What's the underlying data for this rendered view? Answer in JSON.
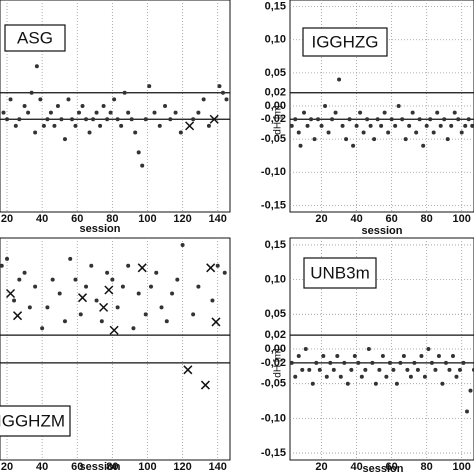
{
  "chart_data": [
    {
      "type": "scatter",
      "title": "ASG",
      "xlabel": "session",
      "xlim": [
        16,
        147
      ],
      "ylim": [
        -0.16,
        0.16
      ],
      "xticks": [
        20,
        40,
        60,
        80,
        100,
        120,
        140
      ],
      "hlines": [
        0.02,
        -0.02
      ],
      "grid": true,
      "series": [
        {
          "marker": "dot",
          "color": "#333333",
          "x": [
            18,
            20,
            22,
            25,
            27,
            30,
            32,
            34,
            36,
            37,
            39,
            41,
            43,
            45,
            47,
            49,
            51,
            53,
            55,
            57,
            59,
            61,
            63,
            65,
            67,
            69,
            71,
            73,
            75,
            77,
            79,
            81,
            83,
            85,
            87,
            89,
            91,
            93,
            95,
            97,
            99,
            101,
            104,
            107,
            110,
            113,
            116,
            119,
            126,
            129,
            132,
            135,
            141,
            143,
            145
          ],
          "values": [
            -0.01,
            -0.02,
            0.01,
            -0.03,
            -0.02,
            0.0,
            -0.01,
            0.02,
            -0.04,
            0.06,
            0.01,
            -0.03,
            -0.02,
            -0.01,
            -0.03,
            0.0,
            -0.02,
            -0.05,
            0.01,
            -0.02,
            -0.03,
            -0.01,
            0.0,
            -0.02,
            -0.04,
            -0.02,
            -0.01,
            -0.03,
            0.0,
            -0.02,
            -0.01,
            0.01,
            -0.02,
            -0.03,
            0.02,
            -0.01,
            -0.02,
            -0.04,
            -0.07,
            -0.09,
            -0.02,
            0.03,
            -0.01,
            -0.03,
            0.0,
            -0.02,
            -0.01,
            -0.04,
            -0.02,
            -0.01,
            0.01,
            -0.03,
            0.03,
            0.02,
            0.01
          ]
        },
        {
          "marker": "cross",
          "color": "#111111",
          "x": [
            124,
            138
          ],
          "values": [
            -0.03,
            -0.02
          ]
        }
      ]
    },
    {
      "type": "scatter",
      "title": "IGGHZG",
      "xlabel": "session",
      "ylabel": "dH [m]",
      "xlim": [
        2,
        107
      ],
      "ylim": [
        -0.16,
        0.16
      ],
      "xticks": [
        20,
        40,
        60,
        80,
        100
      ],
      "yticks": [
        {
          "value": 0.15,
          "label": "0,15"
        },
        {
          "value": 0.1,
          "label": "0,10"
        },
        {
          "value": 0.05,
          "label": "0,05"
        },
        {
          "value": 0.02,
          "label": "0,02"
        },
        {
          "value": 0,
          "label": "0,00"
        },
        {
          "value": -0.02,
          "label": "-0,02"
        },
        {
          "value": -0.05,
          "label": "-0,05"
        },
        {
          "value": -0.1,
          "label": "-0,10"
        },
        {
          "value": -0.15,
          "label": "-0,15"
        }
      ],
      "hlines": [
        0.02,
        -0.02
      ],
      "grid": true,
      "series": [
        {
          "marker": "dot",
          "color": "#333333",
          "x": [
            3,
            5,
            7,
            8,
            10,
            12,
            14,
            16,
            18,
            20,
            22,
            24,
            26,
            28,
            30,
            32,
            34,
            36,
            38,
            40,
            42,
            44,
            46,
            48,
            50,
            52,
            54,
            56,
            58,
            60,
            62,
            64,
            66,
            68,
            70,
            72,
            74,
            76,
            78,
            80,
            82,
            84,
            86,
            88,
            90,
            92,
            94,
            96,
            98,
            100,
            102,
            104,
            106
          ],
          "values": [
            -0.03,
            -0.02,
            -0.04,
            -0.06,
            -0.01,
            -0.03,
            -0.02,
            -0.05,
            -0.02,
            -0.03,
            0.0,
            -0.04,
            -0.02,
            -0.01,
            0.04,
            -0.03,
            -0.05,
            -0.02,
            -0.06,
            -0.03,
            -0.01,
            -0.04,
            -0.02,
            -0.03,
            -0.05,
            -0.02,
            -0.03,
            -0.01,
            -0.04,
            -0.02,
            -0.03,
            0.0,
            -0.02,
            -0.05,
            -0.03,
            -0.01,
            -0.04,
            -0.02,
            -0.06,
            -0.03,
            -0.02,
            -0.04,
            -0.01,
            -0.03,
            -0.02,
            -0.05,
            -0.03,
            -0.01,
            -0.02,
            -0.04,
            -0.03,
            -0.02,
            -0.03
          ]
        }
      ]
    },
    {
      "type": "scatter",
      "title": "IGGHZM",
      "xlabel": "session",
      "xlim": [
        16,
        147
      ],
      "ylim": [
        -0.16,
        0.16
      ],
      "xticks": [
        20,
        40,
        60,
        80,
        100,
        120,
        140
      ],
      "hlines": [
        0.02,
        -0.02
      ],
      "grid": true,
      "series": [
        {
          "marker": "dot",
          "color": "#333333",
          "x": [
            17,
            20,
            24,
            27,
            30,
            33,
            36,
            40,
            43,
            46,
            50,
            53,
            56,
            59,
            62,
            65,
            68,
            71,
            74,
            77,
            80,
            83,
            86,
            89,
            92,
            95,
            99,
            102,
            105,
            108,
            111,
            114,
            117,
            120,
            126,
            129,
            137,
            140,
            144
          ],
          "values": [
            0.12,
            0.13,
            0.07,
            0.1,
            0.11,
            0.06,
            0.09,
            0.03,
            0.06,
            0.1,
            0.08,
            0.04,
            0.13,
            0.1,
            0.05,
            0.09,
            0.12,
            0.07,
            0.04,
            0.11,
            0.1,
            0.06,
            0.09,
            0.12,
            0.03,
            0.08,
            0.05,
            0.09,
            0.11,
            0.06,
            0.04,
            0.08,
            0.1,
            0.15,
            0.05,
            0.09,
            0.07,
            0.12,
            0.11
          ]
        },
        {
          "marker": "cross",
          "color": "#111111",
          "x": [
            22,
            26,
            63,
            75,
            78,
            81,
            97,
            123,
            133,
            136,
            139
          ],
          "values": [
            0.08,
            0.048,
            0.074,
            0.06,
            0.085,
            0.027,
            0.117,
            -0.03,
            -0.052,
            0.117,
            0.039
          ]
        }
      ]
    },
    {
      "type": "scatter",
      "title": "UNB3m",
      "xlabel": "session",
      "ylabel": "dH [m]",
      "xlim": [
        2,
        107
      ],
      "ylim": [
        -0.16,
        0.16
      ],
      "xticks": [
        20,
        40,
        60,
        80,
        100
      ],
      "yticks": [
        {
          "value": 0.15,
          "label": "0,15"
        },
        {
          "value": 0.1,
          "label": "0,10"
        },
        {
          "value": 0.05,
          "label": "0,05"
        },
        {
          "value": 0.02,
          "label": "0,02"
        },
        {
          "value": 0,
          "label": "0,00"
        },
        {
          "value": -0.02,
          "label": "-0,02"
        },
        {
          "value": -0.05,
          "label": "-0,05"
        },
        {
          "value": -0.1,
          "label": "-0,10"
        },
        {
          "value": -0.15,
          "label": "-0,15"
        }
      ],
      "hlines": [
        0.02,
        -0.02
      ],
      "grid": true,
      "series": [
        {
          "marker": "dot",
          "color": "#333333",
          "x": [
            3,
            5,
            7,
            9,
            11,
            13,
            15,
            17,
            19,
            21,
            23,
            25,
            27,
            29,
            31,
            33,
            35,
            37,
            39,
            41,
            43,
            45,
            47,
            49,
            51,
            53,
            55,
            57,
            59,
            61,
            63,
            65,
            67,
            69,
            71,
            73,
            75,
            77,
            79,
            81,
            83,
            85,
            87,
            89,
            91,
            93,
            95,
            97,
            99,
            101,
            103,
            105,
            107
          ],
          "values": [
            -0.02,
            -0.04,
            -0.01,
            -0.03,
            0.0,
            -0.03,
            -0.05,
            -0.02,
            -0.03,
            -0.01,
            -0.04,
            -0.02,
            -0.03,
            -0.01,
            -0.04,
            -0.02,
            -0.05,
            -0.03,
            -0.01,
            -0.02,
            -0.04,
            -0.03,
            0.0,
            -0.02,
            -0.05,
            -0.03,
            -0.01,
            -0.04,
            -0.02,
            -0.03,
            -0.05,
            -0.02,
            -0.01,
            -0.03,
            -0.04,
            -0.02,
            -0.03,
            -0.01,
            -0.04,
            0.0,
            -0.02,
            -0.03,
            -0.01,
            -0.05,
            -0.02,
            -0.03,
            -0.01,
            -0.04,
            -0.03,
            -0.02,
            -0.09,
            -0.06,
            -0.03
          ]
        }
      ]
    }
  ]
}
